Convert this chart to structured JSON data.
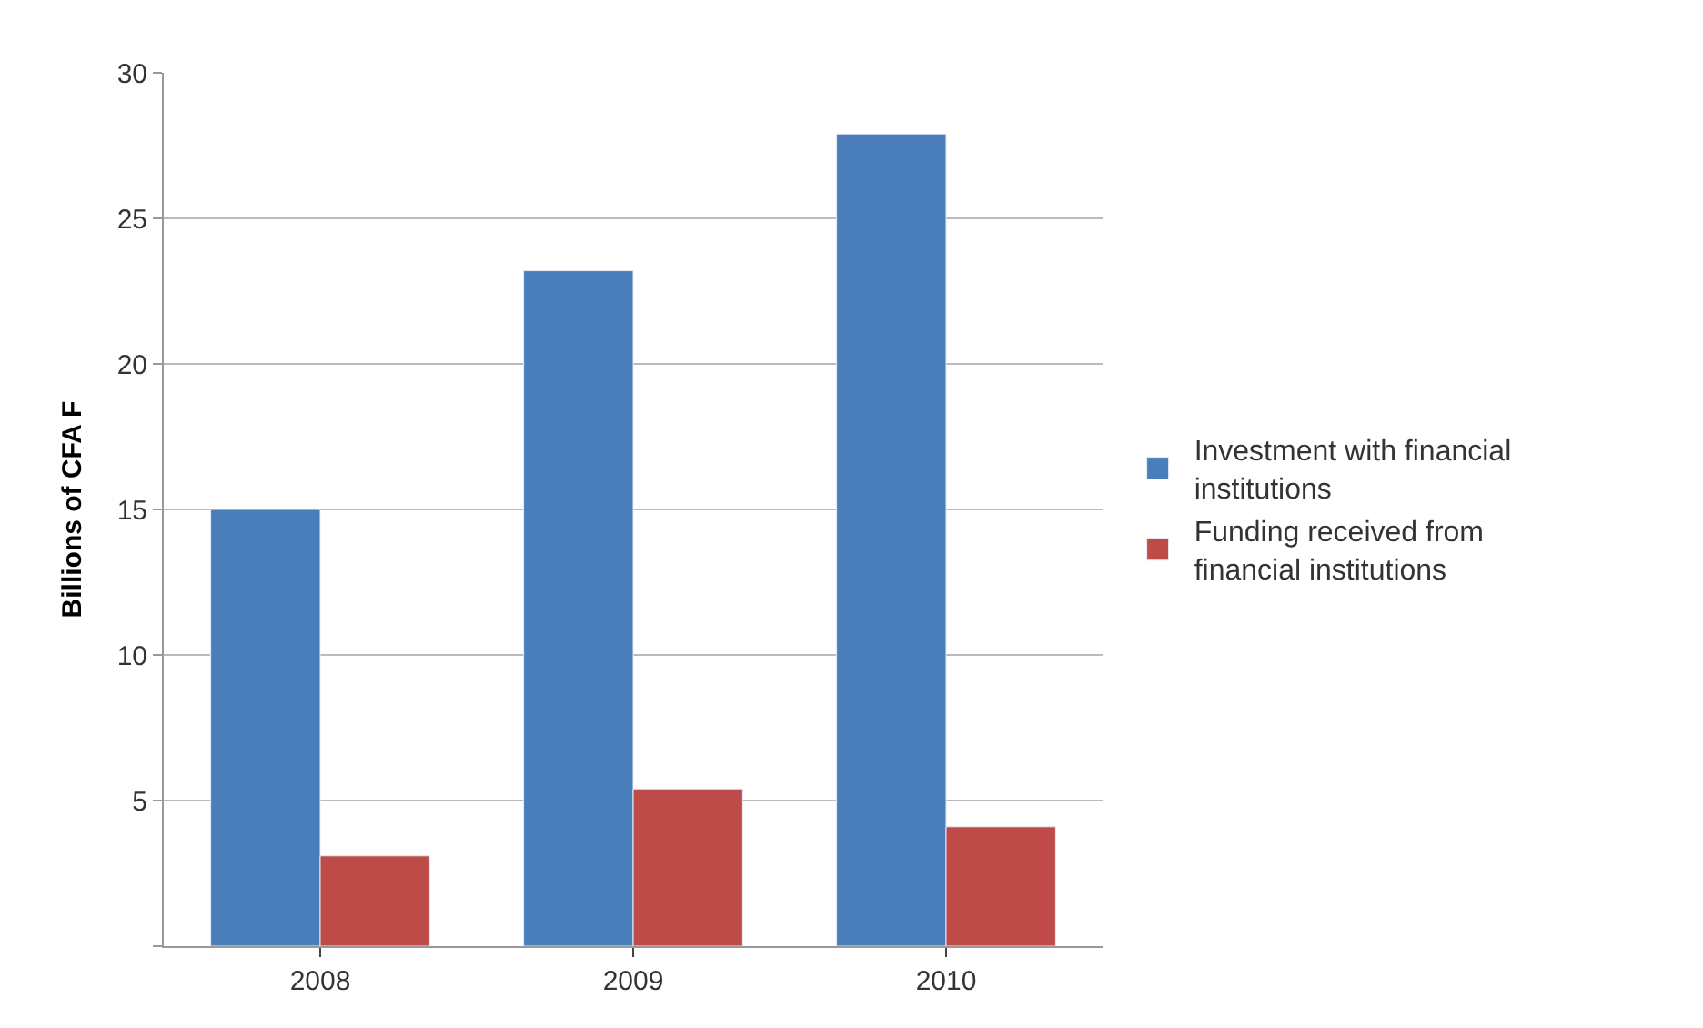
{
  "chart_data": {
    "type": "bar",
    "ylabel": "Billions of CFA F",
    "categories": [
      "2008",
      "2009",
      "2010"
    ],
    "series": [
      {
        "name": "Investment with financial institutions",
        "color": "#4a7ebb",
        "values": [
          15.0,
          23.2,
          27.9
        ]
      },
      {
        "name": "Funding received from financial institutions",
        "color": "#be4b48",
        "values": [
          3.1,
          5.4,
          4.1
        ]
      }
    ],
    "ylim": [
      0,
      30
    ],
    "yticks": [
      {
        "value": 0,
        "label": null
      },
      5,
      10,
      15,
      20,
      25,
      30
    ],
    "grid": "y",
    "legend": "right"
  }
}
